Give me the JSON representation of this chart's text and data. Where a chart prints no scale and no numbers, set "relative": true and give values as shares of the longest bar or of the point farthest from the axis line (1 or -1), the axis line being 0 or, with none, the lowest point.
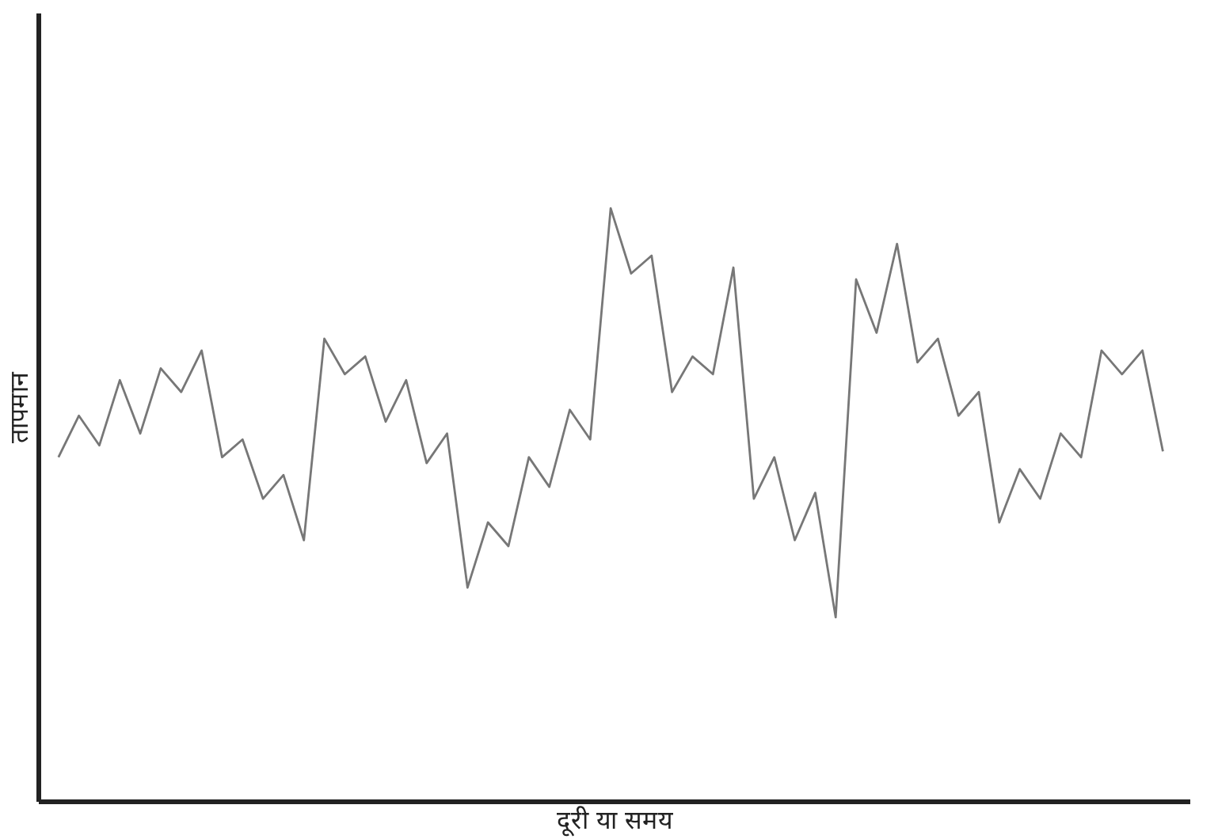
{
  "chart_data": {
    "type": "line",
    "relative": true,
    "xlabel": "दूरी या समय",
    "ylabel": "तापमान",
    "grid": false,
    "tick_labels": false,
    "marker": "none",
    "categories": [
      null,
      null,
      null,
      null,
      null,
      null,
      null,
      null,
      null,
      null,
      null,
      null,
      null,
      null,
      null,
      null,
      null,
      null,
      null,
      null,
      null,
      null,
      null,
      null,
      null,
      null,
      null,
      null,
      null,
      null,
      null,
      null,
      null,
      null,
      null,
      null,
      null,
      null,
      null,
      null,
      null,
      null,
      null,
      null,
      null,
      null,
      null,
      null,
      null,
      null,
      null,
      null,
      null,
      null,
      null
    ],
    "series": [
      {
        "color": "#777777",
        "values": [
          0.58,
          0.65,
          0.6,
          0.71,
          0.62,
          0.73,
          0.69,
          0.76,
          0.58,
          0.61,
          0.51,
          0.55,
          0.44,
          0.78,
          0.72,
          0.75,
          0.64,
          0.71,
          0.57,
          0.62,
          0.36,
          0.47,
          0.43,
          0.58,
          0.53,
          0.66,
          0.61,
          1,
          0.89,
          0.92,
          0.69,
          0.75,
          0.72,
          0.9,
          0.51,
          0.58,
          0.44,
          0.52,
          0.31,
          0.88,
          0.79,
          0.94,
          0.74,
          0.78,
          0.65,
          0.69,
          0.47,
          0.56,
          0.51,
          0.62,
          0.58,
          0.76,
          0.72,
          0.76,
          0.59
        ]
      }
    ]
  }
}
